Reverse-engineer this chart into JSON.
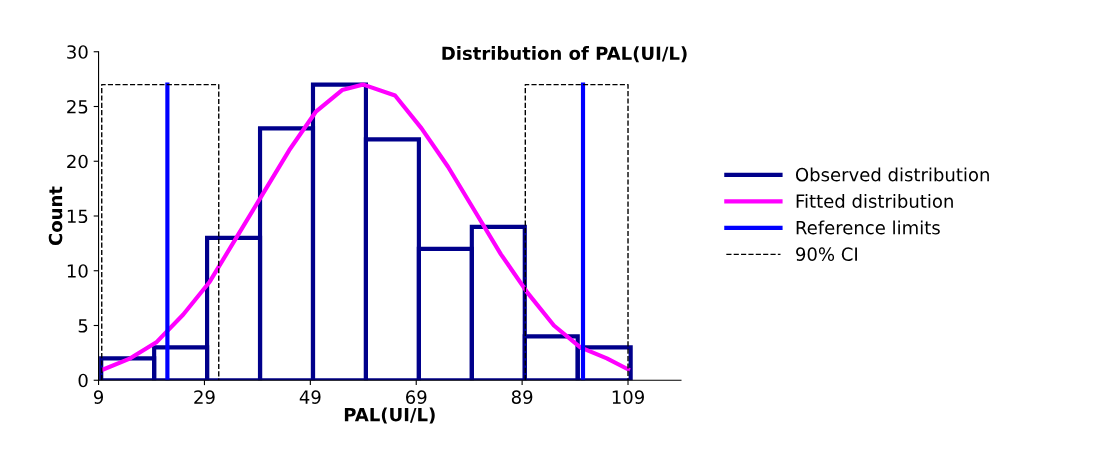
{
  "chart_data": {
    "type": "histogram",
    "title": "Distribution of PAL(UI/L)",
    "xlabel": "PAL(UI/L)",
    "ylabel": "Count",
    "xlim": [
      9,
      119
    ],
    "xticks": [
      9,
      29,
      49,
      69,
      89,
      109
    ],
    "ylim": [
      0,
      30
    ],
    "yticks": [
      0,
      5,
      10,
      15,
      20,
      25,
      30
    ],
    "grid": false,
    "legend": "right",
    "series": [
      {
        "name": "Observed distribution",
        "color": "#00008b",
        "bins": [
          9.5,
          19.5,
          29.5,
          39.5,
          49.5,
          59.5,
          69.5,
          79.5,
          89.5,
          99.5,
          109.5
        ],
        "values": [
          2,
          3,
          13,
          23,
          27,
          22,
          12,
          14,
          4,
          3
        ]
      },
      {
        "type": "line",
        "name": "Fitted distribution",
        "color": "#ff00ff",
        "line_style": "solid",
        "x": [
          10,
          15,
          20,
          25,
          30,
          35,
          40,
          45,
          50,
          55,
          59,
          65,
          70,
          75,
          80,
          85,
          90,
          95,
          100,
          105,
          109
        ],
        "values": [
          1,
          2,
          3.5,
          6,
          9,
          13,
          17,
          21,
          24.5,
          26.5,
          27,
          26,
          23,
          19.5,
          15.5,
          11.5,
          8,
          5,
          3,
          2,
          1
        ]
      },
      {
        "type": "line",
        "name": "Reference limits",
        "color": "#0000ff",
        "line_style": "solid",
        "x": [
          22,
          22,
          61,
          100.5,
          100.5
        ],
        "values": [
          0,
          27,
          null,
          0,
          27
        ]
      },
      {
        "type": "line",
        "name": "90% CI",
        "color": "#000000",
        "line_style": "dashed",
        "x": [
          9.6,
          9.6,
          31.7,
          31.7,
          60,
          89.6,
          89.6,
          109,
          109
        ],
        "values": [
          0,
          27,
          27,
          0,
          null,
          0,
          27,
          27,
          0
        ]
      }
    ]
  }
}
